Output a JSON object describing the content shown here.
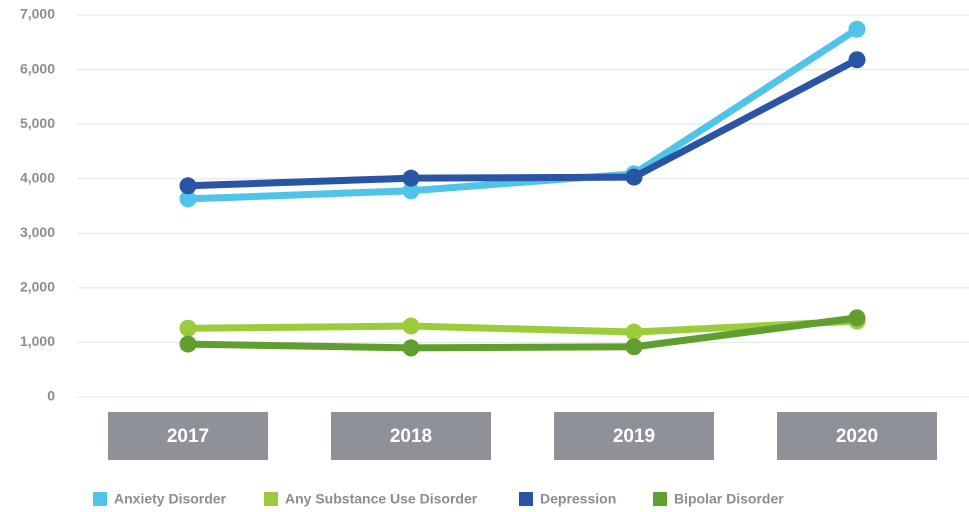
{
  "chart_data": {
    "type": "line",
    "categories": [
      "2017",
      "2018",
      "2019",
      "2020"
    ],
    "series": [
      {
        "name": "Anxiety Disorder",
        "color": "#4fc3e8",
        "values": [
          3630,
          3780,
          4090,
          6740
        ]
      },
      {
        "name": "Any Substance Use Disorder",
        "color": "#9ccb3b",
        "values": [
          1260,
          1300,
          1190,
          1390
        ]
      },
      {
        "name": "Depression",
        "color": "#2a55a4",
        "values": [
          3870,
          4010,
          4030,
          6180
        ]
      },
      {
        "name": "Bipolar Disorder",
        "color": "#5f9e2f",
        "values": [
          970,
          900,
          920,
          1450
        ]
      }
    ],
    "ylim": [
      0,
      7000
    ],
    "yticks": [
      0,
      {
        "value": 1000,
        "label": "1,000"
      },
      {
        "value": 2000,
        "label": "2,000"
      },
      {
        "value": 3000,
        "label": "3,000"
      },
      {
        "value": 4000,
        "label": "4,000"
      },
      {
        "value": 5000,
        "label": "5,000"
      },
      {
        "value": 6000,
        "label": "6,000"
      },
      {
        "value": 7000,
        "label": "7,000"
      }
    ],
    "grid": true,
    "legend": "bottom"
  }
}
